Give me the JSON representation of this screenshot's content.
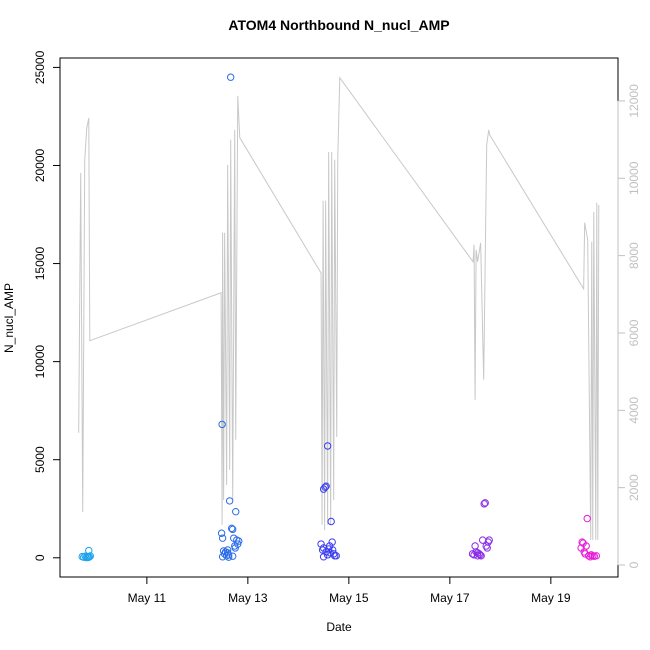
{
  "chart_data": {
    "type": "scatter",
    "title": "ATOM4 Northbound N_nucl_AMP",
    "x_label": "Date",
    "y_label": "N_nucl_AMP",
    "xlim": [
      9.28,
      20.33
    ],
    "xticks": [
      {
        "value": 11,
        "label": "May 11"
      },
      {
        "value": 13,
        "label": "May 13"
      },
      {
        "value": 15,
        "label": "May 15"
      },
      {
        "value": 17,
        "label": "May 17"
      },
      {
        "value": 19,
        "label": "May 19"
      }
    ],
    "ylim": [
      -980,
      25480
    ],
    "yticks": [
      0,
      5000,
      10000,
      15000,
      20000,
      25000
    ],
    "y2lim": [
      -310,
      13110
    ],
    "y2ticks": [
      0,
      2000,
      4000,
      6000,
      8000,
      10000,
      12000
    ],
    "y2_color": "#c0c0c0",
    "series": [
      {
        "color": "#1ca3ec",
        "x": [
          9.72,
          9.75,
          9.78,
          9.8,
          9.82,
          9.84,
          9.86,
          9.88,
          9.85
        ],
        "values": [
          60,
          30,
          80,
          10,
          50,
          20,
          40,
          90,
          370
        ]
      },
      {
        "color": "#2b6ce8",
        "x": [
          12.49,
          12.48,
          12.5,
          12.52,
          12.54,
          12.56,
          12.58,
          12.6,
          12.62,
          12.64,
          12.66,
          12.68,
          12.7,
          12.72,
          12.74,
          12.76,
          12.78,
          12.8,
          12.5,
          12.62,
          12.7,
          12.75,
          12.82,
          12.6
        ],
        "values": [
          6800,
          1250,
          1000,
          350,
          200,
          300,
          100,
          250,
          150,
          2900,
          24500,
          1500,
          1450,
          1000,
          600,
          2350,
          900,
          700,
          50,
          30,
          80,
          500,
          850,
          400
        ]
      },
      {
        "color": "#3b3cf0",
        "x": [
          14.45,
          14.48,
          14.5,
          14.53,
          14.55,
          14.58,
          14.5,
          14.55,
          14.6,
          14.62,
          14.65,
          14.67,
          14.7,
          14.72,
          14.5,
          14.58,
          14.63,
          14.75,
          14.68
        ],
        "values": [
          700,
          400,
          3500,
          3600,
          3650,
          5700,
          500,
          300,
          450,
          600,
          1850,
          800,
          200,
          100,
          50,
          150,
          250,
          100,
          400
        ]
      },
      {
        "color": "#8a2be8",
        "x": [
          17.45,
          17.48,
          17.5,
          17.52,
          17.55,
          17.58,
          17.6,
          17.62,
          17.65,
          17.68,
          17.7,
          17.72,
          17.74,
          17.76,
          17.78,
          17.55
        ],
        "values": [
          200,
          150,
          600,
          300,
          100,
          200,
          150,
          100,
          900,
          2750,
          2800,
          600,
          500,
          800,
          900,
          250
        ]
      },
      {
        "color": "#e51ad8",
        "x": [
          19.6,
          19.62,
          19.64,
          19.66,
          19.68,
          19.72,
          19.75,
          19.78,
          19.8,
          19.83,
          19.86,
          19.9,
          19.7
        ],
        "values": [
          500,
          800,
          750,
          300,
          200,
          2000,
          100,
          50,
          150,
          100,
          80,
          100,
          600
        ]
      },
      {
        "type": "line",
        "axis": "y2",
        "color": "#c8c8c8",
        "x": [
          9.65,
          9.69,
          9.73,
          9.77,
          9.81,
          9.85,
          9.87,
          12.47,
          12.49,
          12.5,
          12.52,
          12.54,
          12.58,
          12.6,
          12.64,
          12.66,
          12.7,
          12.74,
          12.76,
          12.8,
          12.84,
          14.45,
          14.47,
          14.49,
          14.52,
          14.54,
          14.58,
          14.6,
          14.64,
          14.66,
          14.7,
          14.72,
          14.76,
          14.78,
          14.82,
          17.46,
          17.48,
          17.5,
          17.52,
          17.55,
          17.61,
          17.67,
          17.71,
          17.73,
          17.77,
          17.79,
          19.65,
          19.67,
          19.73,
          19.79,
          19.81,
          19.83,
          19.85,
          19.89,
          19.91,
          19.93,
          19.95
        ],
        "values": [
          3420,
          10140,
          1370,
          10480,
          11300,
          11560,
          5800,
          7040,
          1040,
          8590,
          1680,
          8590,
          2070,
          10350,
          2460,
          11000,
          1680,
          11250,
          3240,
          12130,
          11050,
          7550,
          1040,
          9420,
          900,
          9420,
          1040,
          10680,
          1040,
          10680,
          1680,
          10480,
          3310,
          10480,
          12600,
          7840,
          8280,
          4270,
          8150,
          7840,
          8330,
          4790,
          8870,
          10870,
          11250,
          11120,
          7140,
          8850,
          8410,
          650,
          8360,
          650,
          9130,
          650,
          9370,
          650,
          9310
        ]
      }
    ]
  }
}
